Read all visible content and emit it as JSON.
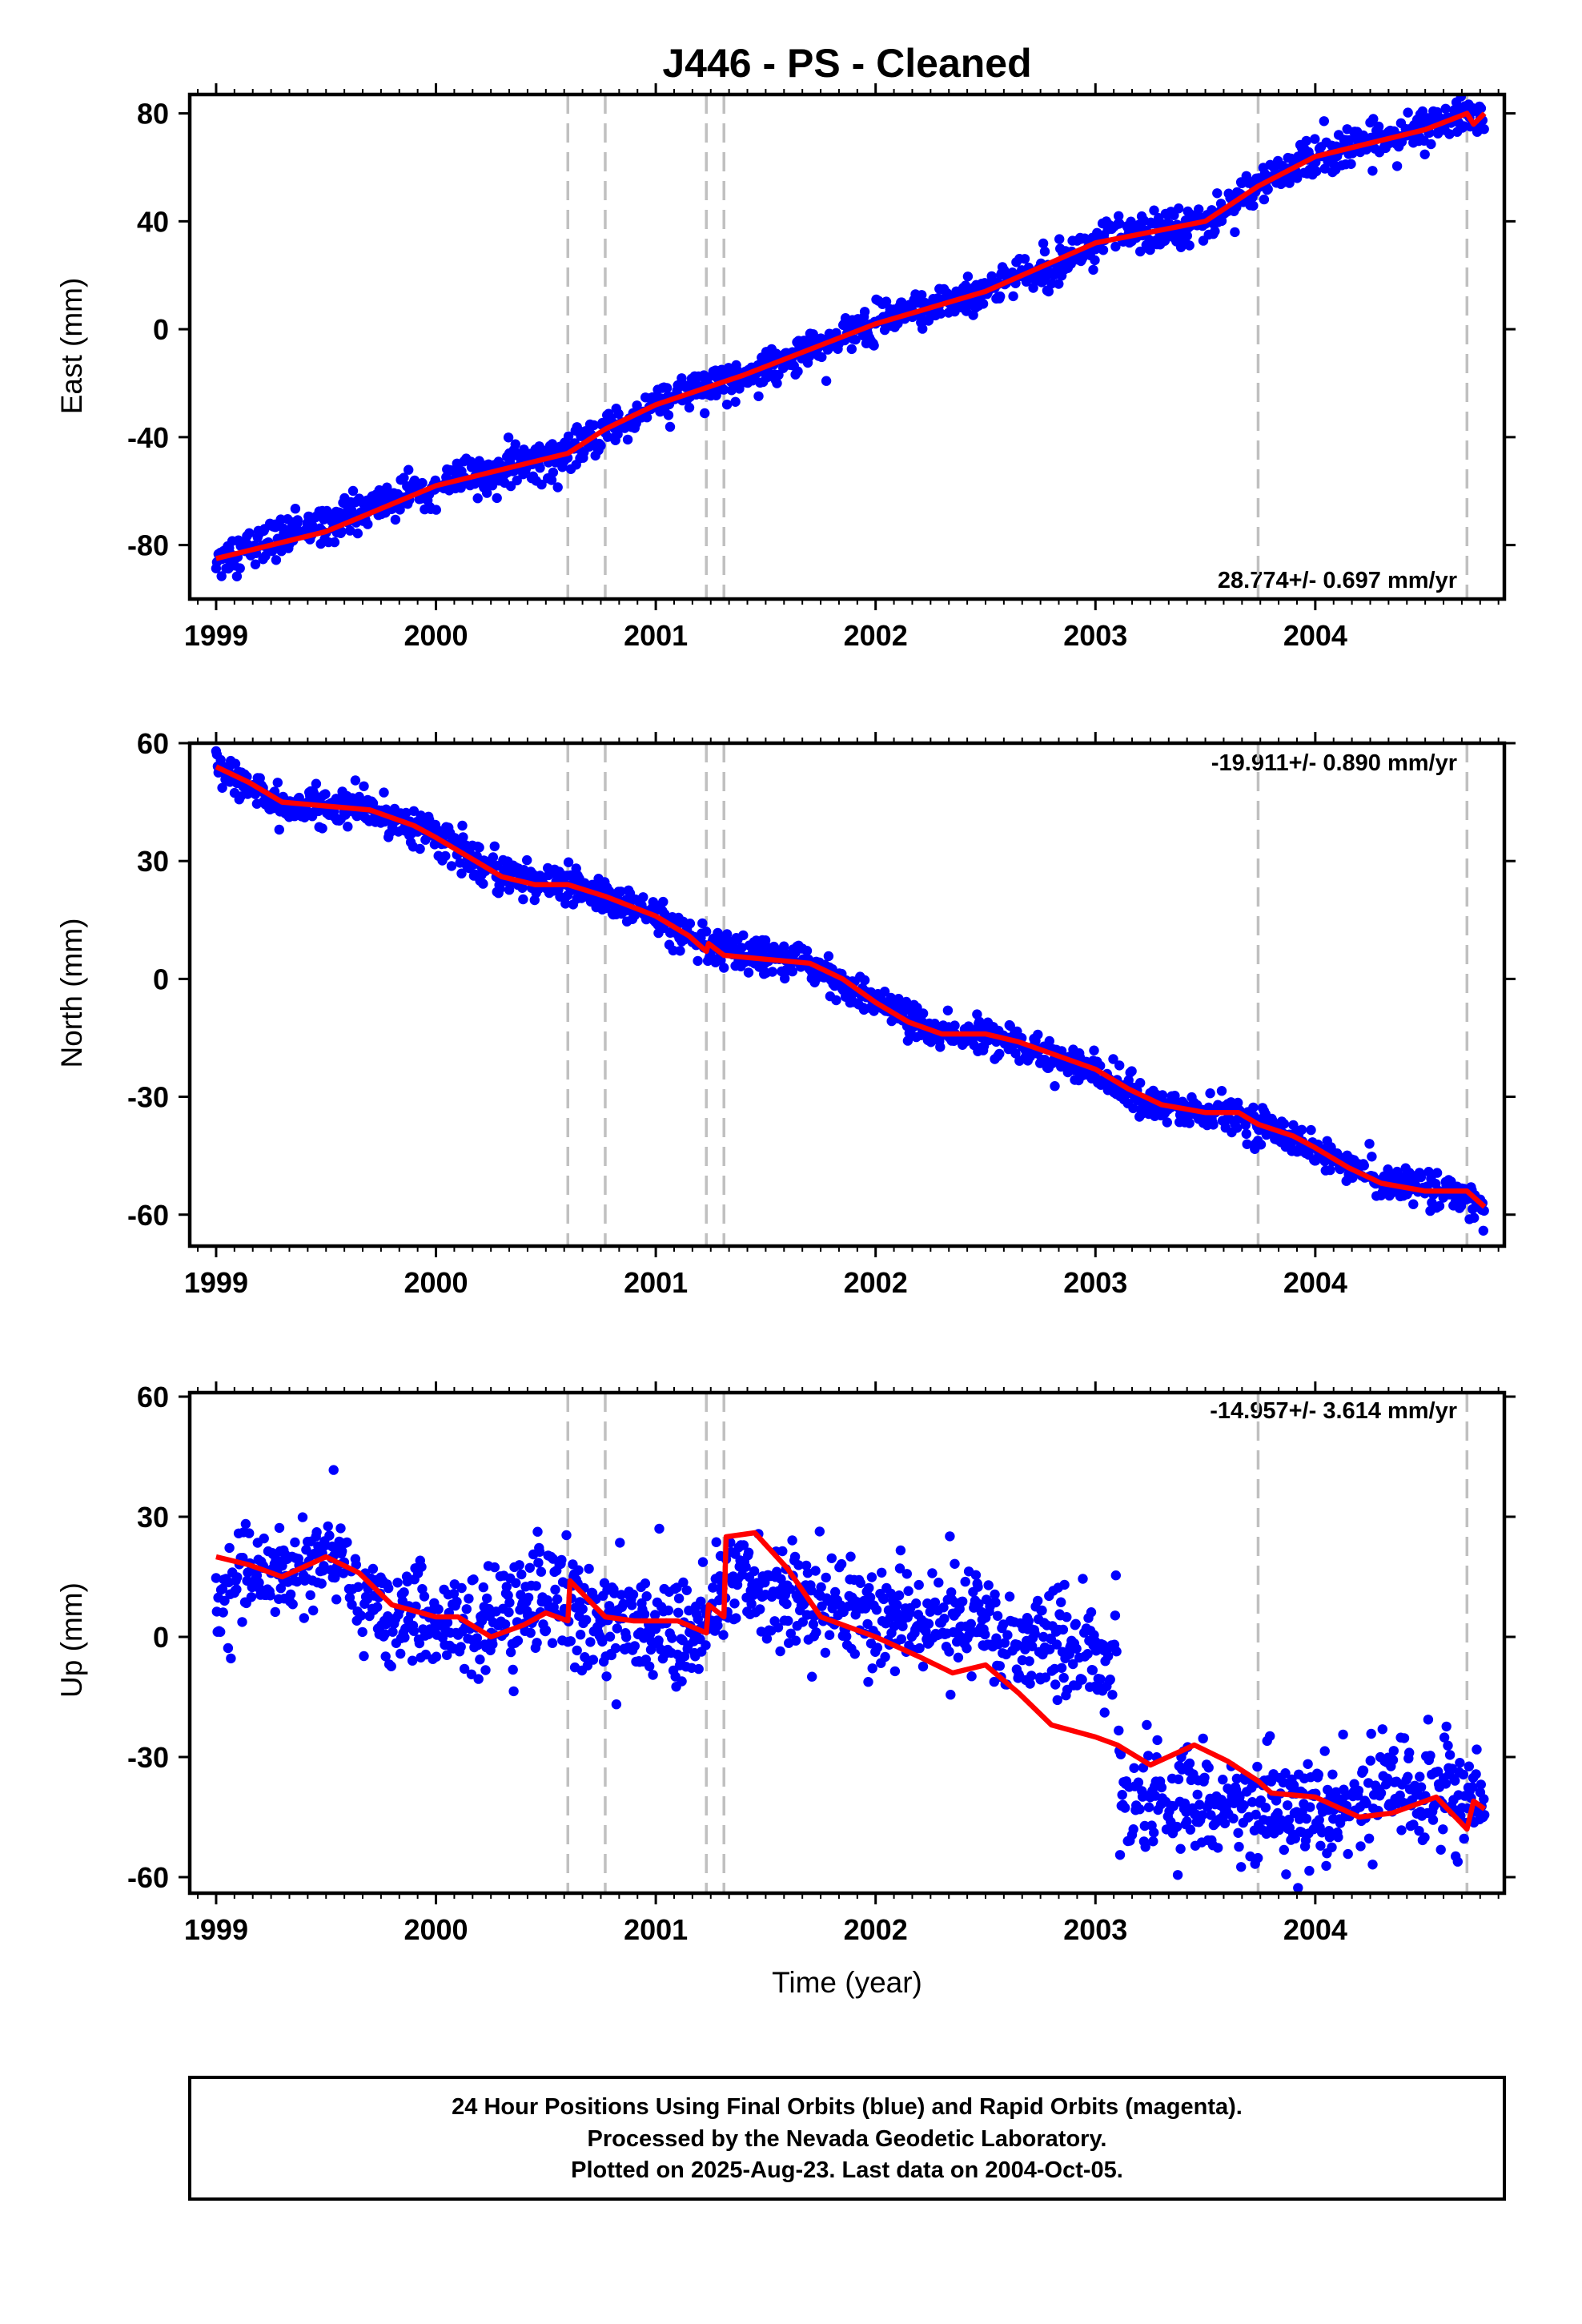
{
  "title": "J446  - PS - Cleaned",
  "colors": {
    "points": "#0000ff",
    "model": "#ff0000",
    "offsets": "#c0c0c0",
    "frame": "#000000"
  },
  "chart_data": [
    {
      "type": "scatter",
      "ylabel": "East (mm)",
      "xlabel": "",
      "xlim": [
        1998.88,
        2004.86
      ],
      "ylim": [
        -100,
        87
      ],
      "xticks": [
        "1999",
        "2000",
        "2001",
        "2002",
        "2003",
        "2004"
      ],
      "yticks": [
        "80",
        "40",
        "0",
        "-40",
        "-80"
      ],
      "yticks_values": [
        80,
        40,
        0,
        -40,
        -80
      ],
      "rate_label": "28.774+/- 0.697 mm/yr",
      "rate_position": "bottom-right",
      "offset_epochs": [
        2000.6,
        2000.77,
        2001.23,
        2001.31,
        2003.74,
        2004.69
      ],
      "series": [
        {
          "name": "",
          "style": "points",
          "x_range": [
            1999.0,
            2004.77
          ],
          "trend_knots": [
            [
              1999.0,
              -85
            ],
            [
              2000.0,
              -58
            ],
            [
              2000.6,
              -46
            ],
            [
              2001.0,
              -28
            ],
            [
              2001.4,
              -17
            ],
            [
              2002.0,
              2
            ],
            [
              2002.5,
              14
            ],
            [
              2003.0,
              32
            ],
            [
              2003.5,
              40
            ],
            [
              2003.74,
              53
            ],
            [
              2004.0,
              64
            ],
            [
              2004.5,
              74
            ],
            [
              2004.77,
              80
            ]
          ],
          "scatter_sd": 3.5,
          "spacing_years": 0.0035
        },
        {
          "name": "",
          "style": "line",
          "knots": [
            [
              1999.0,
              -85
            ],
            [
              1999.5,
              -75
            ],
            [
              2000.0,
              -58
            ],
            [
              2000.6,
              -46
            ],
            [
              2000.77,
              -37
            ],
            [
              2001.0,
              -28
            ],
            [
              2001.4,
              -17
            ],
            [
              2002.0,
              2
            ],
            [
              2002.5,
              14
            ],
            [
              2003.0,
              32
            ],
            [
              2003.5,
              40
            ],
            [
              2003.74,
              53
            ],
            [
              2004.0,
              64
            ],
            [
              2004.5,
              74
            ],
            [
              2004.69,
              80
            ],
            [
              2004.72,
              76
            ],
            [
              2004.77,
              80
            ]
          ]
        }
      ]
    },
    {
      "type": "scatter",
      "ylabel": "North (mm)",
      "xlabel": "",
      "xlim": [
        1998.88,
        2004.86
      ],
      "ylim": [
        -68,
        60
      ],
      "xticks": [
        "1999",
        "2000",
        "2001",
        "2002",
        "2003",
        "2004"
      ],
      "yticks": [
        "60",
        "30",
        "0",
        "-30",
        "-60"
      ],
      "yticks_values": [
        60,
        30,
        0,
        -30,
        -60
      ],
      "rate_label": "-19.911+/- 0.890 mm/yr",
      "rate_position": "top-right",
      "offset_epochs": [
        2000.6,
        2000.77,
        2001.23,
        2001.31,
        2003.74,
        2004.69
      ],
      "series": [
        {
          "name": "",
          "style": "points",
          "x_range": [
            1999.0,
            2004.77
          ],
          "trend_knots": [
            [
              1999.0,
              54
            ],
            [
              1999.3,
              44
            ],
            [
              1999.7,
              43
            ],
            [
              2000.0,
              37
            ],
            [
              2000.3,
              26
            ],
            [
              2000.6,
              24
            ],
            [
              2001.0,
              16
            ],
            [
              2001.2,
              8
            ],
            [
              2001.4,
              6
            ],
            [
              2001.7,
              4
            ],
            [
              2002.0,
              -6
            ],
            [
              2002.3,
              -14
            ],
            [
              2002.6,
              -15
            ],
            [
              2003.0,
              -24
            ],
            [
              2003.3,
              -33
            ],
            [
              2003.6,
              -34
            ],
            [
              2003.74,
              -37
            ],
            [
              2004.0,
              -43
            ],
            [
              2004.3,
              -52
            ],
            [
              2004.6,
              -54
            ],
            [
              2004.77,
              -58
            ]
          ],
          "scatter_sd": 2.2,
          "spacing_years": 0.0035
        },
        {
          "name": "",
          "style": "line",
          "knots": [
            [
              1999.0,
              54
            ],
            [
              1999.15,
              50
            ],
            [
              1999.3,
              45
            ],
            [
              1999.5,
              44
            ],
            [
              1999.7,
              43
            ],
            [
              1999.9,
              39
            ],
            [
              2000.0,
              36
            ],
            [
              2000.15,
              31
            ],
            [
              2000.3,
              26
            ],
            [
              2000.45,
              24
            ],
            [
              2000.6,
              24
            ],
            [
              2000.77,
              21
            ],
            [
              2001.0,
              16
            ],
            [
              2001.15,
              11
            ],
            [
              2001.23,
              7
            ],
            [
              2001.24,
              9
            ],
            [
              2001.31,
              6
            ],
            [
              2001.5,
              5
            ],
            [
              2001.7,
              4
            ],
            [
              2001.85,
              0
            ],
            [
              2002.0,
              -6
            ],
            [
              2002.15,
              -11
            ],
            [
              2002.3,
              -14
            ],
            [
              2002.5,
              -14
            ],
            [
              2002.65,
              -16
            ],
            [
              2002.85,
              -20
            ],
            [
              2003.0,
              -23
            ],
            [
              2003.15,
              -28
            ],
            [
              2003.3,
              -32
            ],
            [
              2003.5,
              -34
            ],
            [
              2003.65,
              -34
            ],
            [
              2003.74,
              -37
            ],
            [
              2003.9,
              -40
            ],
            [
              2004.0,
              -43
            ],
            [
              2004.15,
              -48
            ],
            [
              2004.3,
              -52
            ],
            [
              2004.5,
              -54
            ],
            [
              2004.69,
              -54
            ],
            [
              2004.77,
              -58
            ]
          ]
        }
      ]
    },
    {
      "type": "scatter",
      "ylabel": "Up (mm)",
      "xlabel": "Time (year)",
      "xlim": [
        1998.88,
        2004.86
      ],
      "ylim": [
        -64,
        61
      ],
      "xticks": [
        "1999",
        "2000",
        "2001",
        "2002",
        "2003",
        "2004"
      ],
      "yticks": [
        "60",
        "30",
        "0",
        "-30",
        "-60"
      ],
      "yticks_values": [
        60,
        30,
        0,
        -30,
        -60
      ],
      "rate_label": "-14.957+/- 3.614 mm/yr",
      "rate_position": "top-right",
      "offset_epochs": [
        2000.6,
        2000.77,
        2001.23,
        2001.31,
        2003.74,
        2004.69
      ],
      "series": [
        {
          "name": "",
          "style": "points",
          "x_range": [
            1999.0,
            2004.77
          ],
          "trend_knots": [
            [
              1999.0,
              13
            ],
            [
              1999.5,
              20
            ],
            [
              1999.8,
              6
            ],
            [
              2000.2,
              2
            ],
            [
              2000.55,
              12
            ],
            [
              2000.77,
              3
            ],
            [
              2001.2,
              2
            ],
            [
              2001.35,
              14
            ],
            [
              2001.6,
              10
            ],
            [
              2002.0,
              5
            ],
            [
              2002.5,
              3
            ],
            [
              2003.0,
              -4
            ],
            [
              2003.1,
              -4
            ],
            [
              2003.11,
              -44
            ],
            [
              2003.5,
              -40
            ],
            [
              2004.0,
              -45
            ],
            [
              2004.5,
              -36
            ],
            [
              2004.77,
              -40
            ]
          ],
          "scatter_sd": 6.5,
          "spacing_years": 0.0032
        },
        {
          "name": "",
          "style": "line",
          "knots": [
            [
              1999.0,
              20
            ],
            [
              1999.15,
              18
            ],
            [
              1999.3,
              15
            ],
            [
              1999.5,
              20
            ],
            [
              1999.65,
              16
            ],
            [
              1999.8,
              8
            ],
            [
              2000.0,
              5
            ],
            [
              2000.1,
              5
            ],
            [
              2000.25,
              0
            ],
            [
              2000.4,
              3
            ],
            [
              2000.5,
              6
            ],
            [
              2000.6,
              4
            ],
            [
              2000.61,
              14
            ],
            [
              2000.77,
              5
            ],
            [
              2000.9,
              4
            ],
            [
              2001.1,
              4
            ],
            [
              2001.23,
              1
            ],
            [
              2001.24,
              8
            ],
            [
              2001.31,
              5
            ],
            [
              2001.32,
              25
            ],
            [
              2001.45,
              26
            ],
            [
              2001.6,
              17
            ],
            [
              2001.75,
              5
            ],
            [
              2002.0,
              0
            ],
            [
              2002.2,
              -5
            ],
            [
              2002.35,
              -9
            ],
            [
              2002.5,
              -7
            ],
            [
              2002.65,
              -14
            ],
            [
              2002.8,
              -22
            ],
            [
              2003.0,
              -25
            ],
            [
              2003.1,
              -27
            ],
            [
              2003.25,
              -32
            ],
            [
              2003.45,
              -27
            ],
            [
              2003.6,
              -31
            ],
            [
              2003.74,
              -36
            ],
            [
              2003.8,
              -39
            ],
            [
              2004.0,
              -40
            ],
            [
              2004.2,
              -45
            ],
            [
              2004.35,
              -44
            ],
            [
              2004.55,
              -40
            ],
            [
              2004.69,
              -48
            ],
            [
              2004.72,
              -41
            ],
            [
              2004.77,
              -43
            ]
          ]
        }
      ]
    }
  ],
  "footer": {
    "line1": "24 Hour Positions Using Final Orbits (blue) and Rapid Orbits (magenta).",
    "line2": "Processed by the Nevada Geodetic Laboratory.",
    "line3": "Plotted on 2025-Aug-23. Last data on 2004-Oct-05."
  }
}
